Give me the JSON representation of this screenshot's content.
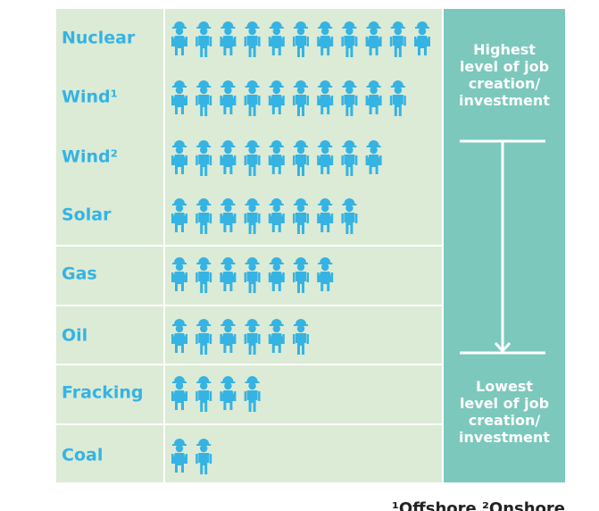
{
  "chart_data": {
    "type": "pictograph",
    "categories": [
      "Nuclear",
      "Wind¹",
      "Wind²",
      "Solar",
      "Gas",
      "Oil",
      "Fracking",
      "Coal"
    ],
    "values": [
      11,
      10,
      9,
      8,
      7,
      6,
      4,
      2
    ],
    "color": "#35b3e3",
    "scale_top": [
      "Highest",
      "level of job",
      "creation/",
      "investment"
    ],
    "scale_bottom": [
      "Lowest",
      "level of job",
      "creation/",
      "investment"
    ],
    "footnote": "¹Offshore  ²Onshore"
  }
}
